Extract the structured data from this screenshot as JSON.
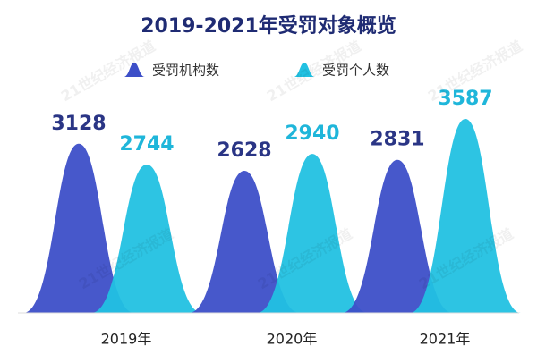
{
  "chart_data": {
    "type": "bar",
    "title": "2019-2021年受罚对象概览",
    "categories": [
      "2019年",
      "2020年",
      "2021年"
    ],
    "series": [
      {
        "name": "受罚机构数",
        "color": "#3d4fc8",
        "values": [
          3128,
          2628,
          2831
        ]
      },
      {
        "name": "受罚个人数",
        "color": "#22c1e2",
        "values": [
          2744,
          2940,
          3587
        ]
      }
    ],
    "watermark": "21世纪经济报道"
  }
}
